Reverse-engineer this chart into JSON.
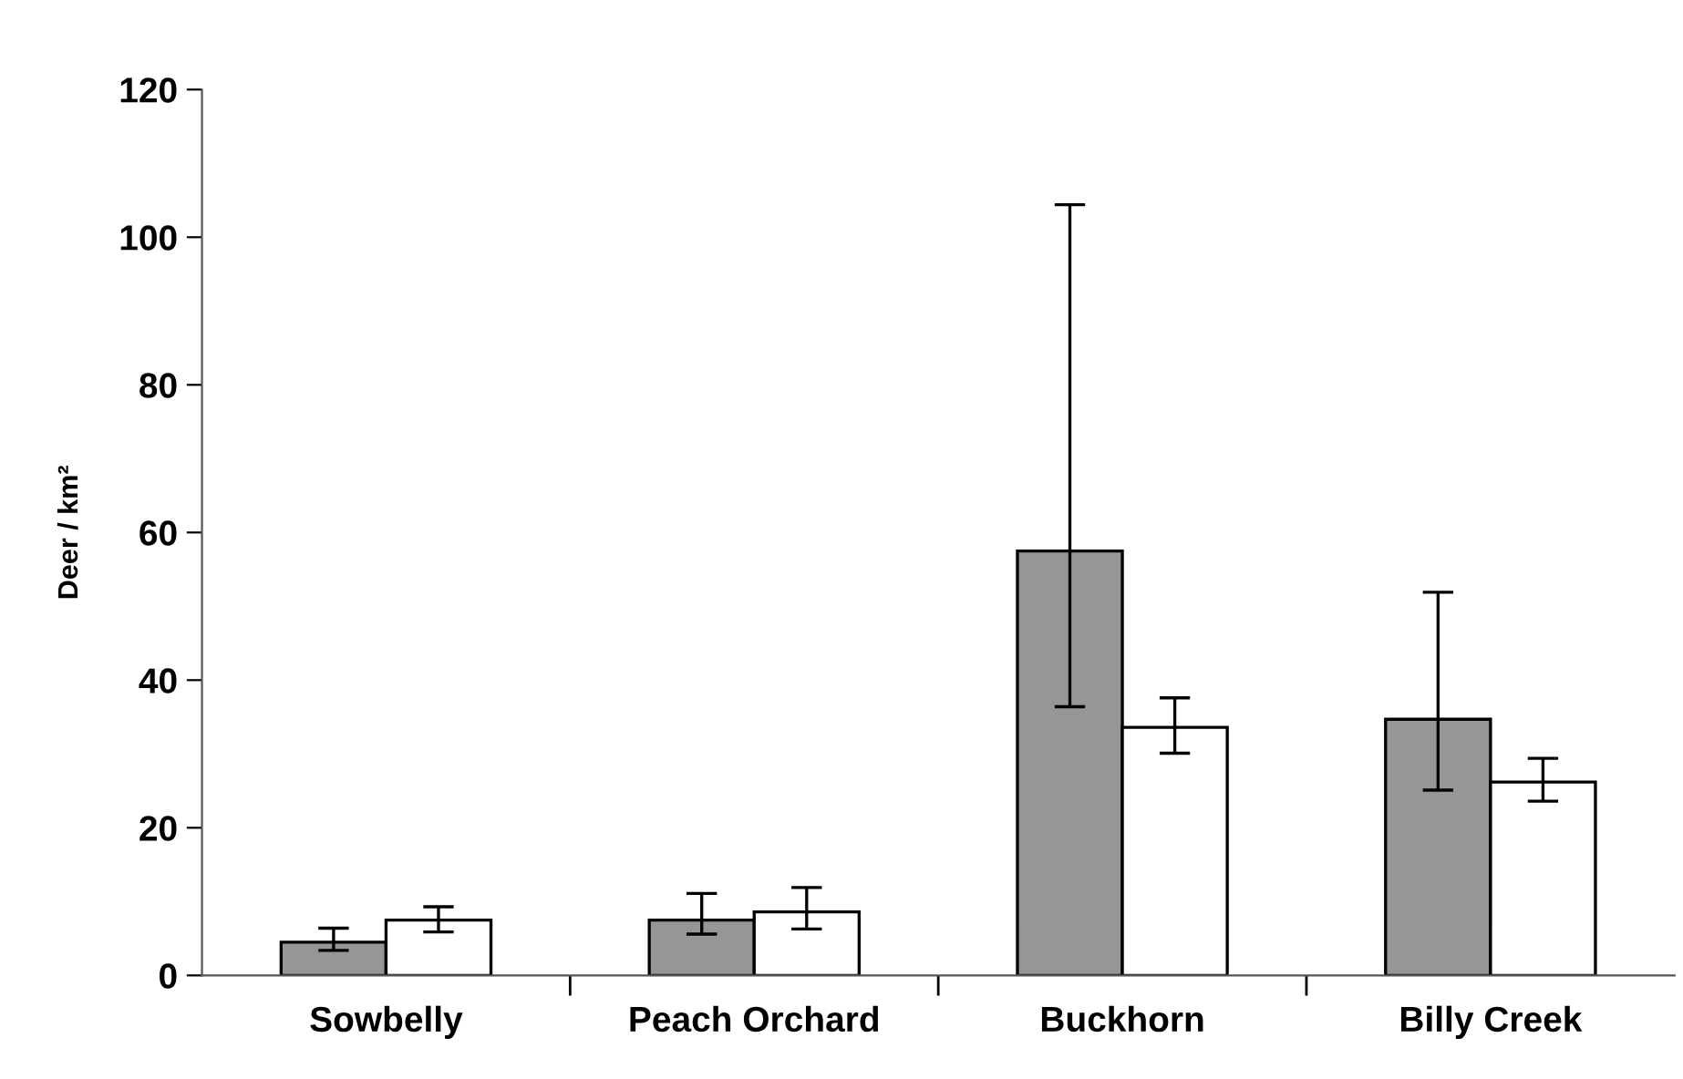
{
  "chart_data": {
    "type": "bar",
    "ylabel": "Deer / km²",
    "categories": [
      "Sowbelly",
      "Peach Orchard",
      "Buckhorn",
      "Billy Creek"
    ],
    "series": [
      {
        "color": "#969696",
        "values": [
          4.5,
          7.5,
          57.5,
          34.7
        ],
        "errors": [
          [
            3.4,
            6.4
          ],
          [
            5.6,
            11.1
          ],
          [
            36.4,
            104.4
          ],
          [
            25.1,
            51.9
          ]
        ]
      },
      {
        "color": "#ffffff",
        "values": [
          7.5,
          8.6,
          33.6,
          26.2
        ],
        "errors": [
          [
            5.9,
            9.3
          ],
          [
            6.3,
            11.9
          ],
          [
            30.1,
            37.6
          ],
          [
            23.6,
            29.4
          ]
        ]
      }
    ],
    "ylim": [
      0,
      120
    ],
    "yticks": [
      0,
      20,
      40,
      60,
      80,
      100,
      120
    ],
    "grid": false,
    "legend": false
  }
}
